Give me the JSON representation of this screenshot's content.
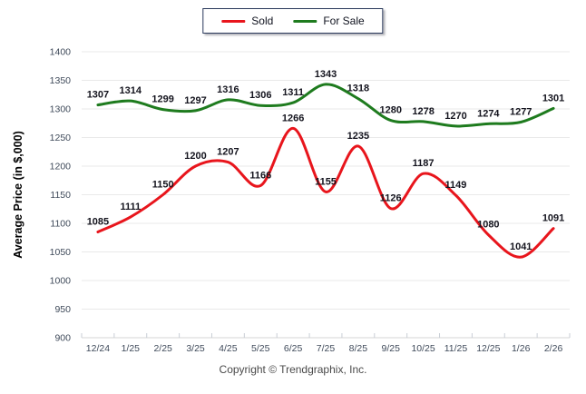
{
  "chart_data": {
    "type": "line",
    "title": "",
    "xlabel": "",
    "ylabel": "Average Price (in $,000)",
    "ylim": [
      900,
      1400
    ],
    "ytick_step": 50,
    "grid": true,
    "line_style": "smooth-spline",
    "legend_position": "top-center",
    "categories": [
      "12/24",
      "1/25",
      "2/25",
      "3/25",
      "4/25",
      "5/25",
      "6/25",
      "7/25",
      "8/25",
      "9/25",
      "10/25",
      "11/25",
      "12/25",
      "1/26",
      "2/26"
    ],
    "series": [
      {
        "name": "Sold",
        "color": "#e8151c",
        "values": [
          1085,
          1111,
          1150,
          1200,
          1207,
          1166,
          1266,
          1155,
          1235,
          1126,
          1187,
          1149,
          1080,
          1041,
          1091
        ]
      },
      {
        "name": "For Sale",
        "color": "#1e7b1e",
        "values": [
          1307,
          1314,
          1299,
          1297,
          1316,
          1306,
          1311,
          1343,
          1318,
          1280,
          1278,
          1270,
          1274,
          1277,
          1301
        ]
      }
    ]
  },
  "footer": {
    "copyright": "Copyright © Trendgraphix, Inc."
  },
  "colors": {
    "grid": "#e9e9e9",
    "baseline": "#d4d4d4",
    "tick": "#c9ced6",
    "axis_text": "#3f4a5a",
    "data_label": "#14141e",
    "axis_title": "#000000",
    "legend_border": "#2b3a5c"
  }
}
